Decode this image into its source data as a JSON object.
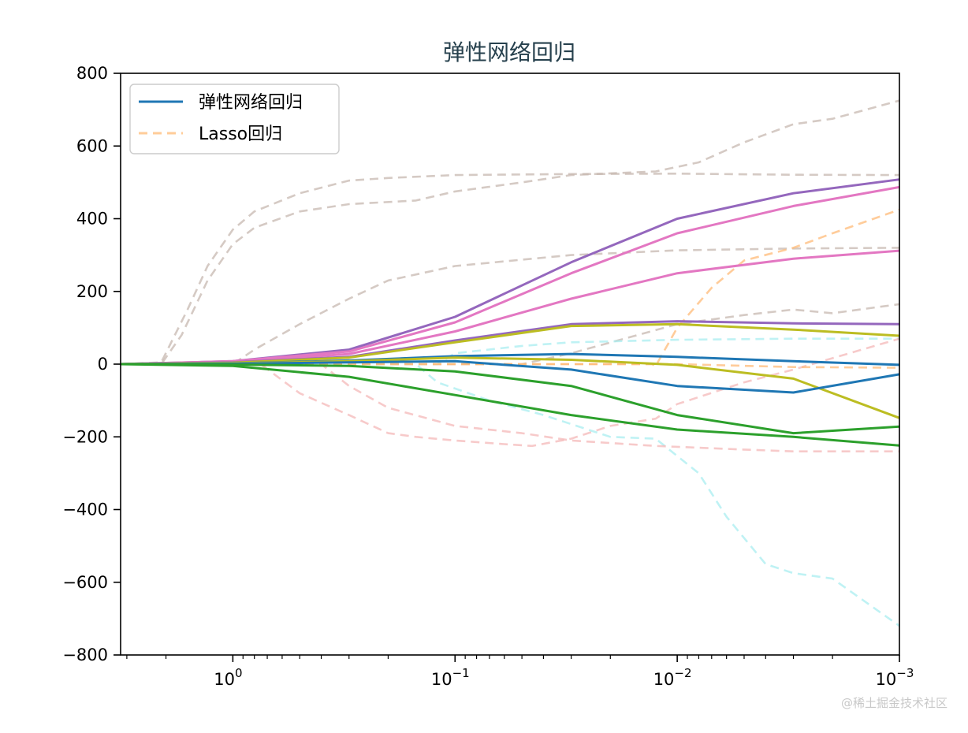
{
  "chart_data": {
    "type": "line",
    "title": "弹性网络回归",
    "xlabel": "",
    "ylabel": "",
    "xscale": "log",
    "x_reversed": true,
    "xlim": [
      3.2,
      0.001
    ],
    "ylim": [
      -800,
      800
    ],
    "grid": false,
    "legend_placement": "upper-left",
    "x_ticks": [
      {
        "value": 1,
        "base": "10",
        "exp": "0"
      },
      {
        "value": 0.1,
        "base": "10",
        "exp": "−1"
      },
      {
        "value": 0.01,
        "base": "10",
        "exp": "−2"
      },
      {
        "value": 0.001,
        "base": "10",
        "exp": "−3"
      }
    ],
    "y_ticks": [
      {
        "value": 800,
        "label": "800"
      },
      {
        "value": 600,
        "label": "600"
      },
      {
        "value": 400,
        "label": "400"
      },
      {
        "value": 200,
        "label": "200"
      },
      {
        "value": 0,
        "label": "0"
      },
      {
        "value": -200,
        "label": "−200"
      },
      {
        "value": -400,
        "label": "−400"
      },
      {
        "value": -600,
        "label": "−600"
      },
      {
        "value": -800,
        "label": "−800"
      }
    ],
    "legend": [
      {
        "label": "弹性网络回归",
        "color": "#1f77b4",
        "style": "solid"
      },
      {
        "label": "Lasso回归",
        "color": "#ffbb78",
        "style": "dashed"
      }
    ],
    "series": [
      {
        "group": "elastic",
        "color": "#9467bd",
        "points": [
          [
            3.2,
            0
          ],
          [
            1,
            8
          ],
          [
            0.3,
            40
          ],
          [
            0.1,
            130
          ],
          [
            0.03,
            280
          ],
          [
            0.01,
            400
          ],
          [
            0.003,
            470
          ],
          [
            0.001,
            508
          ]
        ]
      },
      {
        "group": "elastic",
        "color": "#e377c2",
        "points": [
          [
            3.2,
            0
          ],
          [
            1,
            8
          ],
          [
            0.3,
            35
          ],
          [
            0.1,
            115
          ],
          [
            0.03,
            250
          ],
          [
            0.01,
            360
          ],
          [
            0.003,
            435
          ],
          [
            0.001,
            487
          ]
        ]
      },
      {
        "group": "elastic",
        "color": "#e377c2",
        "points": [
          [
            3.2,
            0
          ],
          [
            1,
            6
          ],
          [
            0.3,
            28
          ],
          [
            0.1,
            90
          ],
          [
            0.03,
            180
          ],
          [
            0.01,
            250
          ],
          [
            0.003,
            290
          ],
          [
            0.001,
            312
          ]
        ]
      },
      {
        "group": "elastic",
        "color": "#9467bd",
        "points": [
          [
            3.2,
            0
          ],
          [
            1,
            5
          ],
          [
            0.3,
            20
          ],
          [
            0.1,
            65
          ],
          [
            0.03,
            110
          ],
          [
            0.01,
            118
          ],
          [
            0.003,
            112
          ],
          [
            0.001,
            110
          ]
        ]
      },
      {
        "group": "elastic",
        "color": "#bcbd22",
        "points": [
          [
            3.2,
            0
          ],
          [
            1,
            4
          ],
          [
            0.3,
            18
          ],
          [
            0.1,
            60
          ],
          [
            0.03,
            105
          ],
          [
            0.01,
            110
          ],
          [
            0.003,
            95
          ],
          [
            0.001,
            78
          ]
        ]
      },
      {
        "group": "elastic",
        "color": "#1f77b4",
        "points": [
          [
            3.2,
            0
          ],
          [
            1,
            2
          ],
          [
            0.3,
            10
          ],
          [
            0.1,
            22
          ],
          [
            0.03,
            28
          ],
          [
            0.01,
            20
          ],
          [
            0.003,
            8
          ],
          [
            0.001,
            -2
          ]
        ]
      },
      {
        "group": "elastic",
        "color": "#bcbd22",
        "points": [
          [
            3.2,
            0
          ],
          [
            1,
            2
          ],
          [
            0.3,
            8
          ],
          [
            0.1,
            18
          ],
          [
            0.03,
            12
          ],
          [
            0.01,
            -2
          ],
          [
            0.003,
            -40
          ],
          [
            0.001,
            -148
          ]
        ]
      },
      {
        "group": "elastic",
        "color": "#1f77b4",
        "points": [
          [
            3.2,
            0
          ],
          [
            1,
            1
          ],
          [
            0.3,
            5
          ],
          [
            0.1,
            8
          ],
          [
            0.03,
            -15
          ],
          [
            0.01,
            -60
          ],
          [
            0.003,
            -78
          ],
          [
            0.001,
            -28
          ]
        ]
      },
      {
        "group": "elastic",
        "color": "#2ca02c",
        "points": [
          [
            3.2,
            0
          ],
          [
            1,
            -1
          ],
          [
            0.3,
            -5
          ],
          [
            0.1,
            -20
          ],
          [
            0.03,
            -60
          ],
          [
            0.01,
            -140
          ],
          [
            0.003,
            -190
          ],
          [
            0.001,
            -172
          ]
        ]
      },
      {
        "group": "elastic",
        "color": "#2ca02c",
        "points": [
          [
            3.2,
            0
          ],
          [
            1,
            -5
          ],
          [
            0.3,
            -35
          ],
          [
            0.1,
            -85
          ],
          [
            0.03,
            -140
          ],
          [
            0.01,
            -180
          ],
          [
            0.003,
            -200
          ],
          [
            0.001,
            -224
          ]
        ]
      },
      {
        "group": "lasso",
        "color": "#c7b8b0",
        "points": [
          [
            3.2,
            0
          ],
          [
            2.1,
            5
          ],
          [
            1.6,
            150
          ],
          [
            1.3,
            270
          ],
          [
            1,
            370
          ],
          [
            0.8,
            420
          ],
          [
            0.5,
            470
          ],
          [
            0.3,
            505
          ],
          [
            0.2,
            512
          ],
          [
            0.1,
            520
          ],
          [
            0.03,
            523
          ],
          [
            0.01,
            524
          ],
          [
            0.003,
            521
          ],
          [
            0.001,
            520
          ]
        ]
      },
      {
        "group": "lasso",
        "color": "#c7b8b0",
        "points": [
          [
            3.2,
            0
          ],
          [
            2.1,
            0
          ],
          [
            1.7,
            80
          ],
          [
            1.3,
            230
          ],
          [
            1,
            330
          ],
          [
            0.8,
            375
          ],
          [
            0.5,
            420
          ],
          [
            0.3,
            440
          ],
          [
            0.15,
            450
          ],
          [
            0.1,
            475
          ],
          [
            0.05,
            500
          ],
          [
            0.03,
            520
          ],
          [
            0.0125,
            530
          ],
          [
            0.008,
            555
          ],
          [
            0.005,
            610
          ],
          [
            0.003,
            660
          ],
          [
            0.002,
            675
          ],
          [
            0.001,
            725
          ]
        ]
      },
      {
        "group": "lasso",
        "color": "#c7b8b0",
        "points": [
          [
            3.2,
            0
          ],
          [
            1,
            0
          ],
          [
            0.8,
            40
          ],
          [
            0.5,
            110
          ],
          [
            0.3,
            180
          ],
          [
            0.2,
            230
          ],
          [
            0.1,
            270
          ],
          [
            0.03,
            300
          ],
          [
            0.01,
            313
          ],
          [
            0.003,
            318
          ],
          [
            0.001,
            320
          ]
        ]
      },
      {
        "group": "lasso",
        "color": "#c7b8b0",
        "points": [
          [
            3.2,
            0
          ],
          [
            0.05,
            0
          ],
          [
            0.03,
            30
          ],
          [
            0.01,
            110
          ],
          [
            0.005,
            135
          ],
          [
            0.003,
            150
          ],
          [
            0.002,
            140
          ],
          [
            0.001,
            165
          ]
        ]
      },
      {
        "group": "lasso",
        "color": "#aaeef0",
        "points": [
          [
            3.2,
            0
          ],
          [
            0.12,
            0
          ],
          [
            0.1,
            30
          ],
          [
            0.05,
            50
          ],
          [
            0.03,
            60
          ],
          [
            0.01,
            67
          ],
          [
            0.003,
            70
          ],
          [
            0.001,
            70
          ]
        ]
      },
      {
        "group": "lasso",
        "color": "#aaeef0",
        "points": [
          [
            3.2,
            0
          ],
          [
            0.15,
            0
          ],
          [
            0.12,
            -50
          ],
          [
            0.07,
            -100
          ],
          [
            0.04,
            -140
          ],
          [
            0.02,
            -200
          ],
          [
            0.0125,
            -205
          ],
          [
            0.008,
            -300
          ],
          [
            0.006,
            -420
          ],
          [
            0.004,
            -550
          ],
          [
            0.003,
            -575
          ],
          [
            0.002,
            -590
          ],
          [
            0.001,
            -720
          ]
        ]
      },
      {
        "group": "lasso",
        "color": "#f4b8b8",
        "points": [
          [
            3.2,
            0
          ],
          [
            0.75,
            0
          ],
          [
            0.5,
            -80
          ],
          [
            0.3,
            -140
          ],
          [
            0.2,
            -190
          ],
          [
            0.15,
            -200
          ],
          [
            0.1,
            -210
          ],
          [
            0.06,
            -220
          ],
          [
            0.045,
            -225
          ],
          [
            0.03,
            -205
          ],
          [
            0.02,
            -170
          ],
          [
            0.0125,
            -150
          ],
          [
            0.01,
            -110
          ],
          [
            0.005,
            -50
          ],
          [
            0.003,
            -15
          ],
          [
            0.001,
            70
          ]
        ]
      },
      {
        "group": "lasso",
        "color": "#f4b8b8",
        "points": [
          [
            3.2,
            0
          ],
          [
            0.4,
            0
          ],
          [
            0.3,
            -60
          ],
          [
            0.2,
            -120
          ],
          [
            0.1,
            -170
          ],
          [
            0.05,
            -190
          ],
          [
            0.03,
            -210
          ],
          [
            0.0125,
            -225
          ],
          [
            0.005,
            -235
          ],
          [
            0.003,
            -240
          ],
          [
            0.001,
            -240
          ]
        ]
      },
      {
        "group": "lasso",
        "color": "#ffbb78",
        "points": [
          [
            3.2,
            0
          ],
          [
            0.013,
            0
          ],
          [
            0.0125,
            -5
          ],
          [
            0.01,
            100
          ],
          [
            0.007,
            210
          ],
          [
            0.005,
            285
          ],
          [
            0.003,
            320
          ],
          [
            0.002,
            360
          ],
          [
            0.001,
            425
          ]
        ]
      },
      {
        "group": "lasso",
        "color": "#ffbb78",
        "points": [
          [
            3.2,
            0
          ],
          [
            0.01,
            0
          ],
          [
            0.003,
            -8
          ],
          [
            0.001,
            -10
          ]
        ]
      }
    ]
  },
  "watermark": "@稀土掘金技术社区"
}
